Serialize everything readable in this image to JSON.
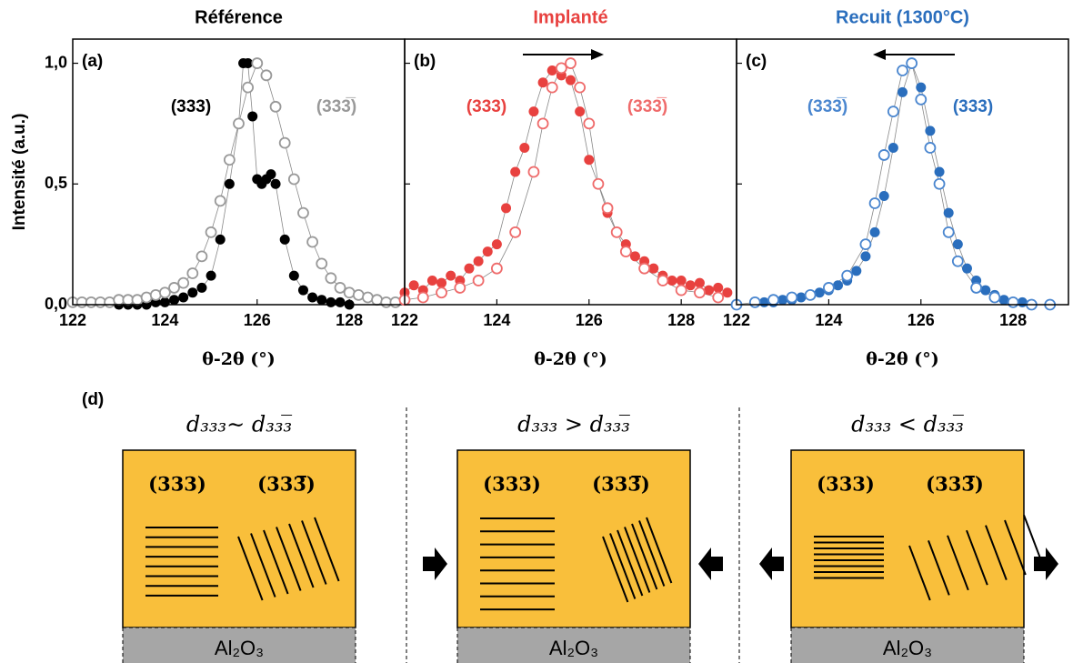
{
  "chart_data": [
    {
      "type": "line",
      "title": "Référence",
      "title_color": "#000000",
      "panel_label": "(a)",
      "xlabel": "θ-2θ (°)",
      "ylabel": "Intensité (a.u.)",
      "xlim": [
        122,
        129.2
      ],
      "xticks": [
        122,
        124,
        126,
        128
      ],
      "ylim": [
        0,
        1.1
      ],
      "yticks": [
        {
          "value": 0,
          "label": "0,0"
        },
        {
          "value": 0.5,
          "label": "0,5"
        },
        {
          "value": 1,
          "label": "1,0"
        }
      ],
      "series": [
        {
          "name": "(333)",
          "color": "#000000",
          "marker": "filled",
          "x": [
            123.0,
            123.2,
            123.4,
            123.6,
            123.8,
            124.0,
            124.2,
            124.4,
            124.6,
            124.8,
            125.0,
            125.2,
            125.4,
            125.6,
            125.7,
            125.8,
            125.9,
            126.0,
            126.1,
            126.2,
            126.3,
            126.4,
            126.6,
            126.8,
            127.0,
            127.2,
            127.4,
            127.6,
            127.8,
            128.0
          ],
          "values": [
            0,
            0,
            0,
            0,
            0.01,
            0.01,
            0.02,
            0.03,
            0.05,
            0.07,
            0.12,
            0.27,
            0.5,
            0.75,
            1.0,
            1.0,
            0.78,
            0.52,
            0.5,
            0.52,
            0.54,
            0.5,
            0.27,
            0.12,
            0.06,
            0.03,
            0.02,
            0.01,
            0.01,
            0
          ]
        },
        {
          "name": "(333̅)",
          "color": "#999999",
          "marker": "open",
          "x": [
            122.0,
            122.2,
            122.4,
            122.6,
            122.8,
            123.0,
            123.2,
            123.4,
            123.6,
            123.8,
            124.0,
            124.2,
            124.4,
            124.6,
            124.8,
            125.0,
            125.2,
            125.4,
            125.6,
            125.8,
            126.0,
            126.2,
            126.4,
            126.6,
            126.8,
            127.0,
            127.2,
            127.4,
            127.6,
            127.8,
            128.0,
            128.2,
            128.4,
            128.6,
            128.8,
            129.0
          ],
          "values": [
            0.01,
            0.01,
            0.01,
            0.01,
            0.01,
            0.02,
            0.02,
            0.02,
            0.03,
            0.04,
            0.05,
            0.07,
            0.09,
            0.13,
            0.2,
            0.3,
            0.43,
            0.6,
            0.75,
            0.9,
            1.0,
            0.95,
            0.82,
            0.67,
            0.52,
            0.38,
            0.26,
            0.17,
            0.11,
            0.07,
            0.05,
            0.04,
            0.03,
            0.02,
            0.01,
            0.01
          ]
        }
      ]
    },
    {
      "type": "line",
      "title": "Implanté",
      "title_color": "#e8413f",
      "panel_label": "(b)",
      "xlabel": "θ-2θ (°)",
      "xlim": [
        122,
        129.2
      ],
      "xticks": [
        122,
        124,
        126,
        128
      ],
      "ylim": [
        0,
        1.1
      ],
      "yticks": [
        0,
        0.5,
        1
      ],
      "ytick_labels": false,
      "series": [
        {
          "name": "(333)",
          "color": "#e8413f",
          "marker": "filled",
          "x": [
            122.0,
            122.2,
            122.4,
            122.6,
            122.8,
            123.0,
            123.2,
            123.4,
            123.6,
            123.8,
            124.0,
            124.2,
            124.4,
            124.6,
            124.8,
            125.0,
            125.2,
            125.4,
            125.6,
            125.8,
            126.0,
            126.2,
            126.4,
            126.6,
            126.8,
            127.0,
            127.2,
            127.4,
            127.6,
            127.8,
            128.0,
            128.2,
            128.4,
            128.6,
            128.8,
            129.0
          ],
          "values": [
            0.05,
            0.08,
            0.06,
            0.1,
            0.09,
            0.12,
            0.1,
            0.15,
            0.18,
            0.22,
            0.25,
            0.4,
            0.55,
            0.65,
            0.8,
            0.92,
            0.97,
            0.95,
            0.93,
            0.8,
            0.6,
            0.5,
            0.38,
            0.3,
            0.25,
            0.2,
            0.18,
            0.15,
            0.12,
            0.1,
            0.1,
            0.08,
            0.09,
            0.06,
            0.07,
            0.05
          ]
        },
        {
          "name": "(333̅)",
          "color": "#ef6b6b",
          "marker": "open",
          "x": [
            122.0,
            122.4,
            122.8,
            123.2,
            123.6,
            124.0,
            124.4,
            124.8,
            125.0,
            125.2,
            125.4,
            125.6,
            125.8,
            126.0,
            126.2,
            126.4,
            126.6,
            126.8,
            127.2,
            127.6,
            128.0,
            128.4,
            128.8
          ],
          "values": [
            0.02,
            0.03,
            0.05,
            0.07,
            0.1,
            0.15,
            0.3,
            0.55,
            0.75,
            0.9,
            0.98,
            1.0,
            0.9,
            0.75,
            0.5,
            0.4,
            0.3,
            0.22,
            0.15,
            0.1,
            0.06,
            0.05,
            0.03
          ]
        }
      ]
    },
    {
      "type": "line",
      "title": "Recuit (1300°C)",
      "title_color": "#2a6ebd",
      "panel_label": "(c)",
      "xlabel": "θ-2θ (°)",
      "xlim": [
        122,
        129.2
      ],
      "xticks": [
        122,
        124,
        126,
        128
      ],
      "ylim": [
        0,
        1.1
      ],
      "yticks": [
        0,
        0.5,
        1
      ],
      "ytick_labels": false,
      "series": [
        {
          "name": "(333)",
          "color": "#2a6ebd",
          "marker": "filled",
          "x": [
            122.6,
            122.8,
            123.0,
            123.2,
            123.4,
            123.6,
            123.8,
            124.0,
            124.2,
            124.4,
            124.6,
            124.8,
            125.0,
            125.2,
            125.4,
            125.6,
            125.8,
            126.0,
            126.2,
            126.4,
            126.6,
            126.8,
            127.0,
            127.2,
            127.4,
            127.6,
            127.8,
            128.0,
            128.2
          ],
          "values": [
            0.01,
            0.01,
            0.02,
            0.02,
            0.03,
            0.04,
            0.05,
            0.06,
            0.08,
            0.1,
            0.14,
            0.2,
            0.3,
            0.45,
            0.65,
            0.88,
            1.0,
            0.9,
            0.72,
            0.55,
            0.38,
            0.25,
            0.15,
            0.1,
            0.06,
            0.04,
            0.02,
            0.01,
            0.01
          ]
        },
        {
          "name": "(333̅)",
          "color": "#4a86cf",
          "marker": "open",
          "x": [
            122.0,
            122.4,
            122.8,
            123.2,
            123.6,
            124.0,
            124.4,
            124.8,
            125.0,
            125.2,
            125.4,
            125.6,
            125.8,
            126.0,
            126.2,
            126.4,
            126.6,
            126.8,
            127.2,
            127.6,
            128.0,
            128.4,
            128.8
          ],
          "values": [
            0,
            0.01,
            0.02,
            0.03,
            0.04,
            0.07,
            0.12,
            0.25,
            0.42,
            0.62,
            0.8,
            0.97,
            1.0,
            0.85,
            0.65,
            0.5,
            0.3,
            0.18,
            0.07,
            0.03,
            0.01,
            0,
            0
          ]
        }
      ]
    }
  ],
  "diagram": {
    "label": "(d)",
    "panels": [
      {
        "relation": "d₃₃₃∼ d₃₃₃̅",
        "left": "(333)",
        "right": "(333̅)",
        "substrate": "Al₂O₃"
      },
      {
        "relation": "d₃₃₃ > d₃₃₃̅",
        "left": "(333)",
        "right": "(333̅)",
        "substrate": "Al₂O₃"
      },
      {
        "relation": "d₃₃₃ < d₃₃₃̅",
        "left": "(333)",
        "right": "(333̅)",
        "substrate": "Al₂O₃"
      }
    ]
  }
}
